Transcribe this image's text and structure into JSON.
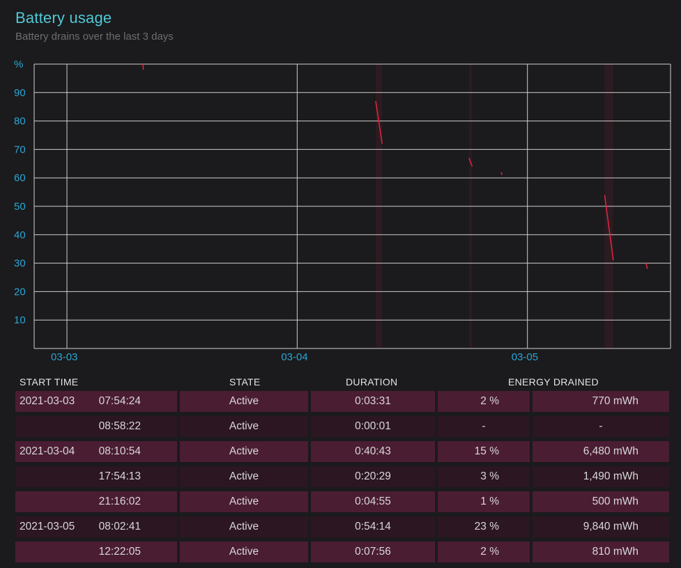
{
  "header": {
    "title": "Battery usage",
    "subtitle": "Battery drains over the last 3 days"
  },
  "chart_data": {
    "type": "line",
    "ylabel": "%",
    "ylim": [
      0,
      100
    ],
    "y_ticks": [
      "90",
      "80",
      "70",
      "60",
      "50",
      "40",
      "30",
      "20",
      "10"
    ],
    "x_ticks": [
      "03-03",
      "03-04",
      "03-05"
    ],
    "xlim": [
      "2021-03-02 20:35",
      "2021-03-05 14:55"
    ],
    "grid": true,
    "series": [
      {
        "points": [
          [
            "2021-03-03 07:54:24",
            100
          ],
          [
            "2021-03-03 07:57:55",
            98
          ]
        ]
      },
      {
        "points": [
          [
            "2021-03-04 08:10:54",
            87
          ],
          [
            "2021-03-04 08:51:37",
            72
          ]
        ]
      },
      {
        "points": [
          [
            "2021-03-04 17:54:13",
            67
          ],
          [
            "2021-03-04 18:14:42",
            64
          ]
        ]
      },
      {
        "points": [
          [
            "2021-03-04 21:16:02",
            62
          ],
          [
            "2021-03-04 21:20:57",
            61
          ]
        ]
      },
      {
        "points": [
          [
            "2021-03-05 08:02:41",
            54
          ],
          [
            "2021-03-05 08:56:55",
            31
          ]
        ]
      },
      {
        "points": [
          [
            "2021-03-05 12:22:05",
            30
          ],
          [
            "2021-03-05 12:30:01",
            28
          ]
        ]
      }
    ],
    "colors": {
      "line": "#d8263f",
      "grid": "#cfcfcf",
      "ticks": "#2aa7d6"
    }
  },
  "table": {
    "headers": {
      "start_time": "START TIME",
      "state": "STATE",
      "duration": "DURATION",
      "energy_drained": "ENERGY DRAINED"
    },
    "rows": [
      {
        "date": "2021-03-03",
        "time": "07:54:24",
        "state": "Active",
        "duration": "0:03:31",
        "percent": "2 %",
        "energy": "770 mWh"
      },
      {
        "date": "",
        "time": "08:58:22",
        "state": "Active",
        "duration": "0:00:01",
        "percent": "-",
        "energy": "-"
      },
      {
        "date": "2021-03-04",
        "time": "08:10:54",
        "state": "Active",
        "duration": "0:40:43",
        "percent": "15 %",
        "energy": "6,480 mWh"
      },
      {
        "date": "",
        "time": "17:54:13",
        "state": "Active",
        "duration": "0:20:29",
        "percent": "3 %",
        "energy": "1,490 mWh"
      },
      {
        "date": "",
        "time": "21:16:02",
        "state": "Active",
        "duration": "0:04:55",
        "percent": "1 %",
        "energy": "500 mWh"
      },
      {
        "date": "2021-03-05",
        "time": "08:02:41",
        "state": "Active",
        "duration": "0:54:14",
        "percent": "23 %",
        "energy": "9,840 mWh"
      },
      {
        "date": "",
        "time": "12:22:05",
        "state": "Active",
        "duration": "0:07:56",
        "percent": "2 %",
        "energy": "810 mWh"
      }
    ]
  }
}
